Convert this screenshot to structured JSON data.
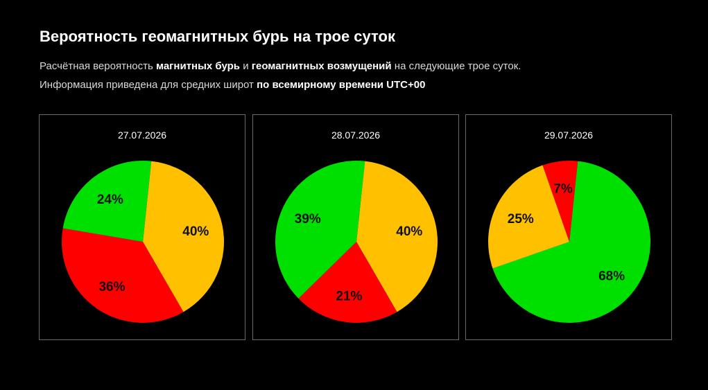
{
  "header": {
    "title": "Вероятность геомагнитных бурь на трое суток",
    "line1": {
      "t1": "Расчётная вероятность ",
      "b1": "магнитных бурь",
      "t2": " и ",
      "b2": "геомагнитных возмущений",
      "t3": " на следующие трое суток."
    },
    "line2": {
      "t1": "Информация приведена для средних широт ",
      "b1": "по всемирному времени UTC+00"
    }
  },
  "colors": {
    "green": "#00e000",
    "yellow": "#ffc000",
    "red": "#ff0000",
    "background": "#000000",
    "panel_border": "#6b6b6b"
  },
  "chart_data": [
    {
      "type": "pie",
      "title": "27.07.2026",
      "slices": [
        {
          "value": 40,
          "label": "40%",
          "color": "#ffc000"
        },
        {
          "value": 36,
          "label": "36%",
          "color": "#ff0000"
        },
        {
          "value": 24,
          "label": "24%",
          "color": "#00e000"
        }
      ]
    },
    {
      "type": "pie",
      "title": "28.07.2026",
      "slices": [
        {
          "value": 40,
          "label": "40%",
          "color": "#ffc000"
        },
        {
          "value": 21,
          "label": "21%",
          "color": "#ff0000"
        },
        {
          "value": 39,
          "label": "39%",
          "color": "#00e000"
        }
      ]
    },
    {
      "type": "pie",
      "title": "29.07.2026",
      "slices": [
        {
          "value": 68,
          "label": "68%",
          "color": "#00e000"
        },
        {
          "value": 25,
          "label": "25%",
          "color": "#ffc000"
        },
        {
          "value": 7,
          "label": "7%",
          "color": "#ff0000"
        }
      ]
    }
  ]
}
